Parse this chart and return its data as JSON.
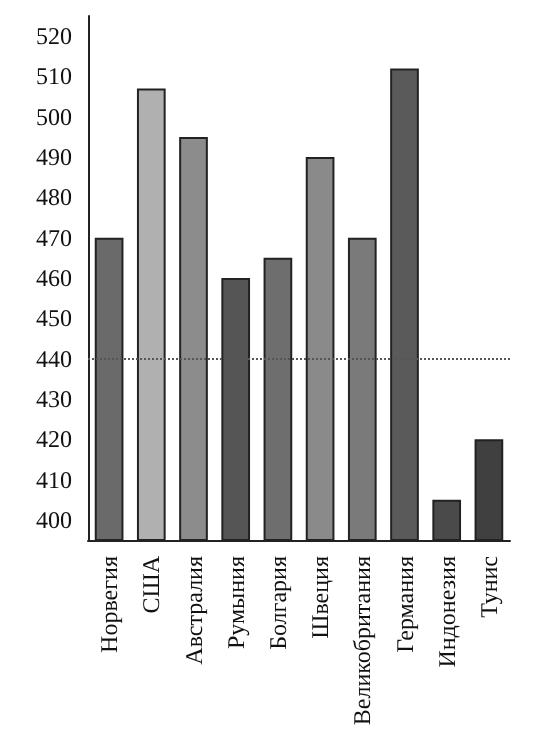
{
  "chart_data": {
    "type": "bar",
    "categories": [
      "Норвегия",
      "США",
      "Австралия",
      "Румыния",
      "Болгария",
      "Швеция",
      "Великобритания",
      "Германия",
      "Индонезия",
      "Тунис"
    ],
    "values": [
      470,
      507,
      495,
      460,
      465,
      490,
      470,
      512,
      405,
      420
    ],
    "colors": [
      "#6a6a6a",
      "#b0b0b0",
      "#8c8c8c",
      "#555555",
      "#6e6e6e",
      "#8a8a8a",
      "#7a7a7a",
      "#5a5a5a",
      "#4a4a4a",
      "#404040"
    ],
    "ylim": [
      395,
      525
    ],
    "yticks": [
      400,
      410,
      420,
      430,
      440,
      450,
      460,
      470,
      480,
      490,
      500,
      510,
      520
    ],
    "grid": false,
    "ref_lines": [
      {
        "axis": "y",
        "value": 440,
        "color": "#555555",
        "line_style": "dotted"
      }
    ]
  }
}
